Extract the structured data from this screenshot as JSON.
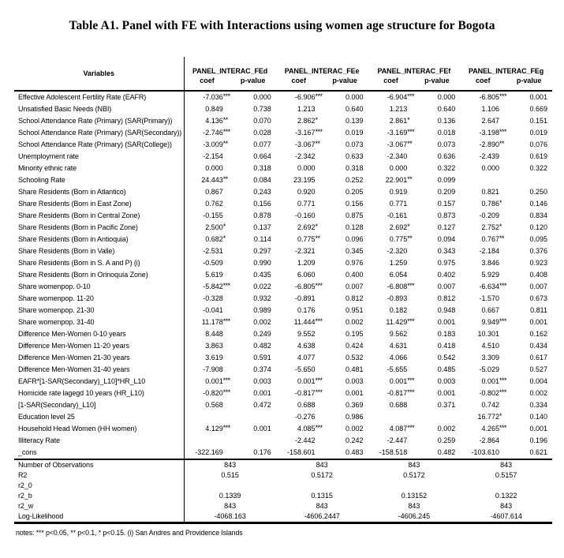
{
  "page": {
    "title": "Table A1. Panel with FE with Interactions using women age structure for Bogota",
    "notes": "notes:  *** p<0.05, ** p<0.1, * p<0.15. (i) San Andres and Providence Islands"
  },
  "table": {
    "variables_header": "Variables",
    "model_headers": [
      "PANEL_INTERAC_FEd",
      "PANEL_INTERAC_FEe",
      "PANEL_INTERAC_FEf",
      "PANEL_INTERAC_FEg"
    ],
    "sub_headers": [
      "coef",
      "p-value"
    ],
    "rows": [
      {
        "label": "Effective Adolescent Fertility Rate (EAFR)",
        "models": [
          [
            "-7.036",
            "***",
            "0.000"
          ],
          [
            "-6.906",
            "***",
            "0.000"
          ],
          [
            "-6.904",
            "***",
            "0.000"
          ],
          [
            "-6.805",
            "***",
            "0.001"
          ]
        ]
      },
      {
        "label": "Unsatisfied Basic Needs (NBI)",
        "models": [
          [
            "0.849",
            "",
            "0.738"
          ],
          [
            "1.213",
            "",
            "0.640"
          ],
          [
            "1.213",
            "",
            "0.640"
          ],
          [
            "1.106",
            "",
            "0.669"
          ]
        ]
      },
      {
        "label": "School Attendance Rate (Primary) (SAR(Primary))",
        "models": [
          [
            "4.136",
            "**",
            "0.070"
          ],
          [
            "2.862",
            "*",
            "0.139"
          ],
          [
            "2.861",
            "*",
            "0.136"
          ],
          [
            "2.647",
            "",
            "0.151"
          ]
        ]
      },
      {
        "label": "School Attendance Rate (Primary) (SAR(Secondary))",
        "models": [
          [
            "-2.746",
            "***",
            "0.028"
          ],
          [
            "-3.167",
            "***",
            "0.019"
          ],
          [
            "-3.169",
            "***",
            "0.018"
          ],
          [
            "-3.198",
            "***",
            "0.019"
          ]
        ]
      },
      {
        "label": "School Attendance Rate (Primary) (SAR(College))",
        "models": [
          [
            "-3.009",
            "**",
            "0.077"
          ],
          [
            "-3.067",
            "**",
            "0.073"
          ],
          [
            "-3.067",
            "**",
            "0.073"
          ],
          [
            "-2.890",
            "**",
            "0.076"
          ]
        ]
      },
      {
        "label": "Unemployment rate",
        "models": [
          [
            "-2.154",
            "",
            "0.664"
          ],
          [
            "-2.342",
            "",
            "0.633"
          ],
          [
            "-2.340",
            "",
            "0.636"
          ],
          [
            "-2.439",
            "",
            "0.619"
          ]
        ]
      },
      {
        "label": "Minority ethnic rate",
        "models": [
          [
            "0.000",
            "",
            "0.318"
          ],
          [
            "0.000",
            "",
            "0.318"
          ],
          [
            "0.000",
            "",
            "0.322"
          ],
          [
            "0.000",
            "",
            "0.322"
          ]
        ]
      },
      {
        "label": "Schooling Rate",
        "models": [
          [
            "24.443",
            "**",
            "0.084"
          ],
          [
            "23.195",
            "",
            "0.252"
          ],
          [
            "22.901",
            "**",
            "0.099"
          ],
          [
            "",
            "",
            ""
          ]
        ]
      },
      {
        "label": "Share Residents (Born in Atlantico)",
        "models": [
          [
            "0.867",
            "",
            "0.243"
          ],
          [
            "0.920",
            "",
            "0.205"
          ],
          [
            "0.919",
            "",
            "0.209"
          ],
          [
            "0.821",
            "",
            "0.250"
          ]
        ]
      },
      {
        "label": "Share Residents (Born in East Zone)",
        "models": [
          [
            "0.762",
            "",
            "0.156"
          ],
          [
            "0.771",
            "",
            "0.156"
          ],
          [
            "0.771",
            "",
            "0.157"
          ],
          [
            "0.786",
            "*",
            "0.146"
          ]
        ]
      },
      {
        "label": "Share Residents (Born in Central Zone)",
        "models": [
          [
            "-0.155",
            "",
            "0.878"
          ],
          [
            "-0.160",
            "",
            "0.875"
          ],
          [
            "-0.161",
            "",
            "0.873"
          ],
          [
            "-0.209",
            "",
            "0.834"
          ]
        ]
      },
      {
        "label": "Share Residents (Born in Pacific Zone)",
        "models": [
          [
            "2.500",
            "*",
            "0.137"
          ],
          [
            "2.692",
            "*",
            "0.128"
          ],
          [
            "2.692",
            "*",
            "0.127"
          ],
          [
            "2.752",
            "*",
            "0.120"
          ]
        ]
      },
      {
        "label": "Share Residents (Born in Antioquia)",
        "models": [
          [
            "0.682",
            "*",
            "0.114"
          ],
          [
            "0.775",
            "**",
            "0.096"
          ],
          [
            "0.775",
            "**",
            "0.094"
          ],
          [
            "0.767",
            "**",
            "0.095"
          ]
        ]
      },
      {
        "label": "Share Residents (Born in Valle)",
        "models": [
          [
            "-2.531",
            "",
            "0.297"
          ],
          [
            "-2.321",
            "",
            "0.345"
          ],
          [
            "-2.320",
            "",
            "0.343"
          ],
          [
            "-2.184",
            "",
            "0.376"
          ]
        ]
      },
      {
        "label": "Share Residents (Born in S. A and P) (i)",
        "models": [
          [
            "-0.509",
            "",
            "0.990"
          ],
          [
            "1.209",
            "",
            "0.976"
          ],
          [
            "1.259",
            "",
            "0.975"
          ],
          [
            "3.846",
            "",
            "0.923"
          ]
        ]
      },
      {
        "label": "Share Residents (Born in Orinoquía Zone)",
        "models": [
          [
            "5.619",
            "",
            "0.435"
          ],
          [
            "6.060",
            "",
            "0.400"
          ],
          [
            "6.054",
            "",
            "0.402"
          ],
          [
            "5.929",
            "",
            "0.408"
          ]
        ]
      },
      {
        "label": "Share womenpop. 0-10",
        "models": [
          [
            "-5.842",
            "***",
            "0.022"
          ],
          [
            "-6.805",
            "***",
            "0.007"
          ],
          [
            "-6.808",
            "***",
            "0.007"
          ],
          [
            "-6.634",
            "***",
            "0.007"
          ]
        ]
      },
      {
        "label": "Share womenpop. 11-20",
        "models": [
          [
            "-0.328",
            "",
            "0.932"
          ],
          [
            "-0.891",
            "",
            "0.812"
          ],
          [
            "-0.893",
            "",
            "0.812"
          ],
          [
            "-1.570",
            "",
            "0.673"
          ]
        ]
      },
      {
        "label": "Share womenpop. 21-30",
        "models": [
          [
            "-0.041",
            "",
            "0.989"
          ],
          [
            "0.176",
            "",
            "0.951"
          ],
          [
            "0.182",
            "",
            "0.948"
          ],
          [
            "0.667",
            "",
            "0.811"
          ]
        ]
      },
      {
        "label": "Share womenpop. 31-40",
        "models": [
          [
            "11.178",
            "***",
            "0.002"
          ],
          [
            "11.444",
            "***",
            "0.002"
          ],
          [
            "11.429",
            "***",
            "0.001"
          ],
          [
            "9.949",
            "***",
            "0.001"
          ]
        ]
      },
      {
        "label": "Difference Men-Women 0-10 years",
        "models": [
          [
            "8.448",
            "",
            "0.249"
          ],
          [
            "9.552",
            "",
            "0.195"
          ],
          [
            "9.562",
            "",
            "0.183"
          ],
          [
            "10.301",
            "",
            "0.162"
          ]
        ]
      },
      {
        "label": "Difference Men-Women 11-20 years",
        "models": [
          [
            "3.863",
            "",
            "0.482"
          ],
          [
            "4.638",
            "",
            "0.424"
          ],
          [
            "4.631",
            "",
            "0.418"
          ],
          [
            "4.510",
            "",
            "0.434"
          ]
        ]
      },
      {
        "label": "Difference Men-Women 21-30 years",
        "models": [
          [
            "3.619",
            "",
            "0.591"
          ],
          [
            "4.077",
            "",
            "0.532"
          ],
          [
            "4.066",
            "",
            "0.542"
          ],
          [
            "3.309",
            "",
            "0.617"
          ]
        ]
      },
      {
        "label": "Difference Men-Women 31-40 years",
        "models": [
          [
            "-7.908",
            "",
            "0.374"
          ],
          [
            "-5.650",
            "",
            "0.481"
          ],
          [
            "-5.655",
            "",
            "0.485"
          ],
          [
            "-5.029",
            "",
            "0.527"
          ]
        ]
      },
      {
        "label": "EAFR*[1-SAR(Secondary)_L10]*HR_L10",
        "models": [
          [
            "0.001",
            "***",
            "0.003"
          ],
          [
            "0.001",
            "***",
            "0.003"
          ],
          [
            "0.001",
            "***",
            "0.003"
          ],
          [
            "0.001",
            "***",
            "0.004"
          ]
        ]
      },
      {
        "label": "Homicide rate lagegd 10 years (HR_L10)",
        "models": [
          [
            "-0.820",
            "***",
            "0.001"
          ],
          [
            "-0.817",
            "***",
            "0.001"
          ],
          [
            "-0.817",
            "***",
            "0.001"
          ],
          [
            "-0.802",
            "***",
            "0.002"
          ]
        ]
      },
      {
        "label": "[1-SAR(Secondary)_L10]",
        "models": [
          [
            "0.568",
            "",
            "0.472"
          ],
          [
            "0.688",
            "",
            "0.369"
          ],
          [
            "0.688",
            "",
            "0.371"
          ],
          [
            "0.742",
            "",
            "0.334"
          ]
        ]
      },
      {
        "label": "Education level 25",
        "models": [
          [
            "",
            "",
            ""
          ],
          [
            "-0.276",
            "",
            "0.986"
          ],
          [
            "",
            "",
            ""
          ],
          [
            "16.772",
            "*",
            "0.140"
          ]
        ]
      },
      {
        "label": "Household Head Women (HH women)",
        "models": [
          [
            "4.129",
            "***",
            "0.001"
          ],
          [
            "4.085",
            "***",
            "0.002"
          ],
          [
            "4.087",
            "***",
            "0.002"
          ],
          [
            "4.265",
            "***",
            "0.001"
          ]
        ]
      },
      {
        "label": "Illiteracy Rate",
        "models": [
          [
            "",
            "",
            ""
          ],
          [
            "-2.442",
            "",
            "0.242"
          ],
          [
            "-2.447",
            "",
            "0.259"
          ],
          [
            "-2.864",
            "",
            "0.196"
          ]
        ]
      },
      {
        "label": "_cons",
        "models": [
          [
            "-322.169",
            "",
            "0.176"
          ],
          [
            "-158.601",
            "",
            "0.483"
          ],
          [
            "-158.518",
            "",
            "0.482"
          ],
          [
            "-103.610",
            "",
            "0.621"
          ]
        ]
      }
    ],
    "summary_rows": [
      {
        "label": "Number of Observations",
        "values": [
          "843",
          "843",
          "843",
          "843"
        ]
      },
      {
        "label": "R2",
        "values": [
          "0.515",
          "0.5172",
          "0.5172",
          "0.5157"
        ]
      },
      {
        "label": "r2_0",
        "values": [
          "",
          "",
          "",
          ""
        ]
      },
      {
        "label": "r2_b",
        "values": [
          "0.1339",
          "0.1315",
          "0.13152",
          "0.1322"
        ]
      },
      {
        "label": "r2_w",
        "values": [
          "843",
          "843",
          "843",
          "843"
        ]
      },
      {
        "label": "Log-Likelihood",
        "values": [
          "-4068.163",
          "-4606.2447",
          "-4606.245",
          "-4607.614"
        ]
      }
    ]
  }
}
